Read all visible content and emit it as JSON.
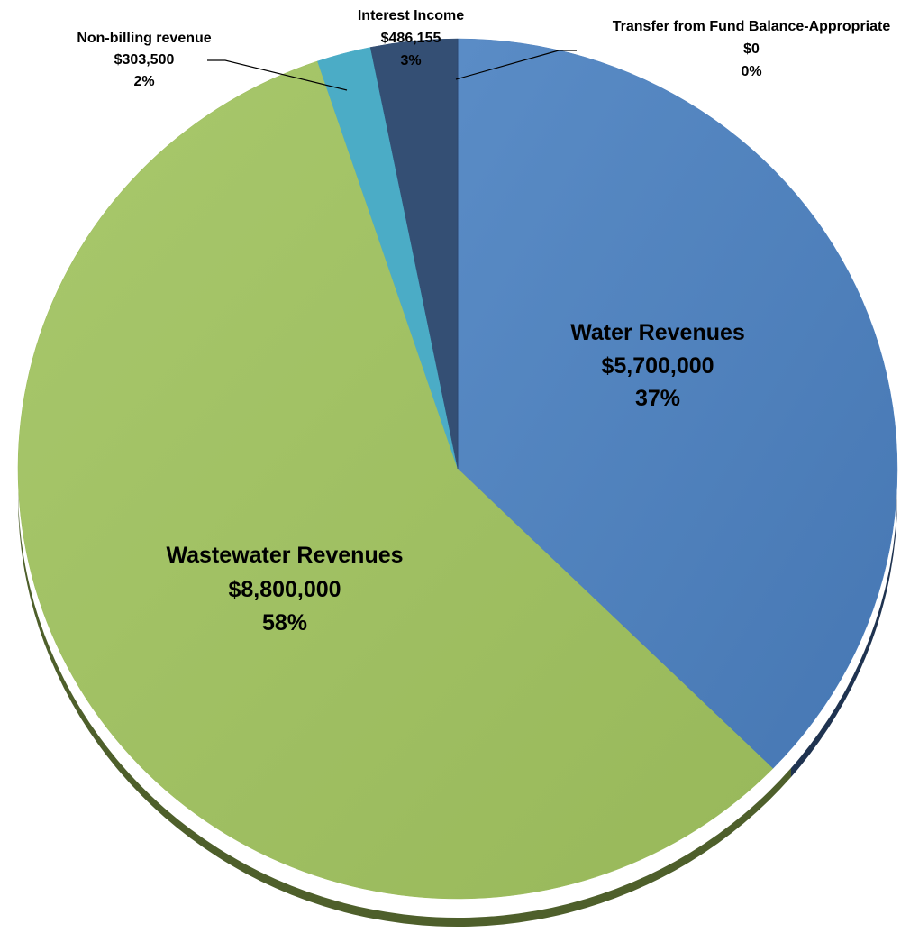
{
  "chart_data": {
    "type": "pie",
    "title": "",
    "legend": "none",
    "slices": [
      {
        "label": "Water Revenues",
        "value": 5700000,
        "value_label": "$5,700,000",
        "percent_label": "37%",
        "color": "#4f81bd"
      },
      {
        "label": "Wastewater Revenues",
        "value": 8800000,
        "value_label": "$8,800,000",
        "percent_label": "58%",
        "color": "#9bbb59"
      },
      {
        "label": "Non-billing revenue",
        "value": 303500,
        "value_label": "$303,500",
        "percent_label": "2%",
        "color": "#4bacc6"
      },
      {
        "label": "Interest Income",
        "value": 486155,
        "value_label": "$486,155",
        "percent_label": "3%",
        "color": "#344f74"
      },
      {
        "label": "Transfer from Fund Balance-Appropriate",
        "value": 0,
        "value_label": "$0",
        "percent_label": "0%",
        "color": "#2c4770"
      }
    ]
  }
}
